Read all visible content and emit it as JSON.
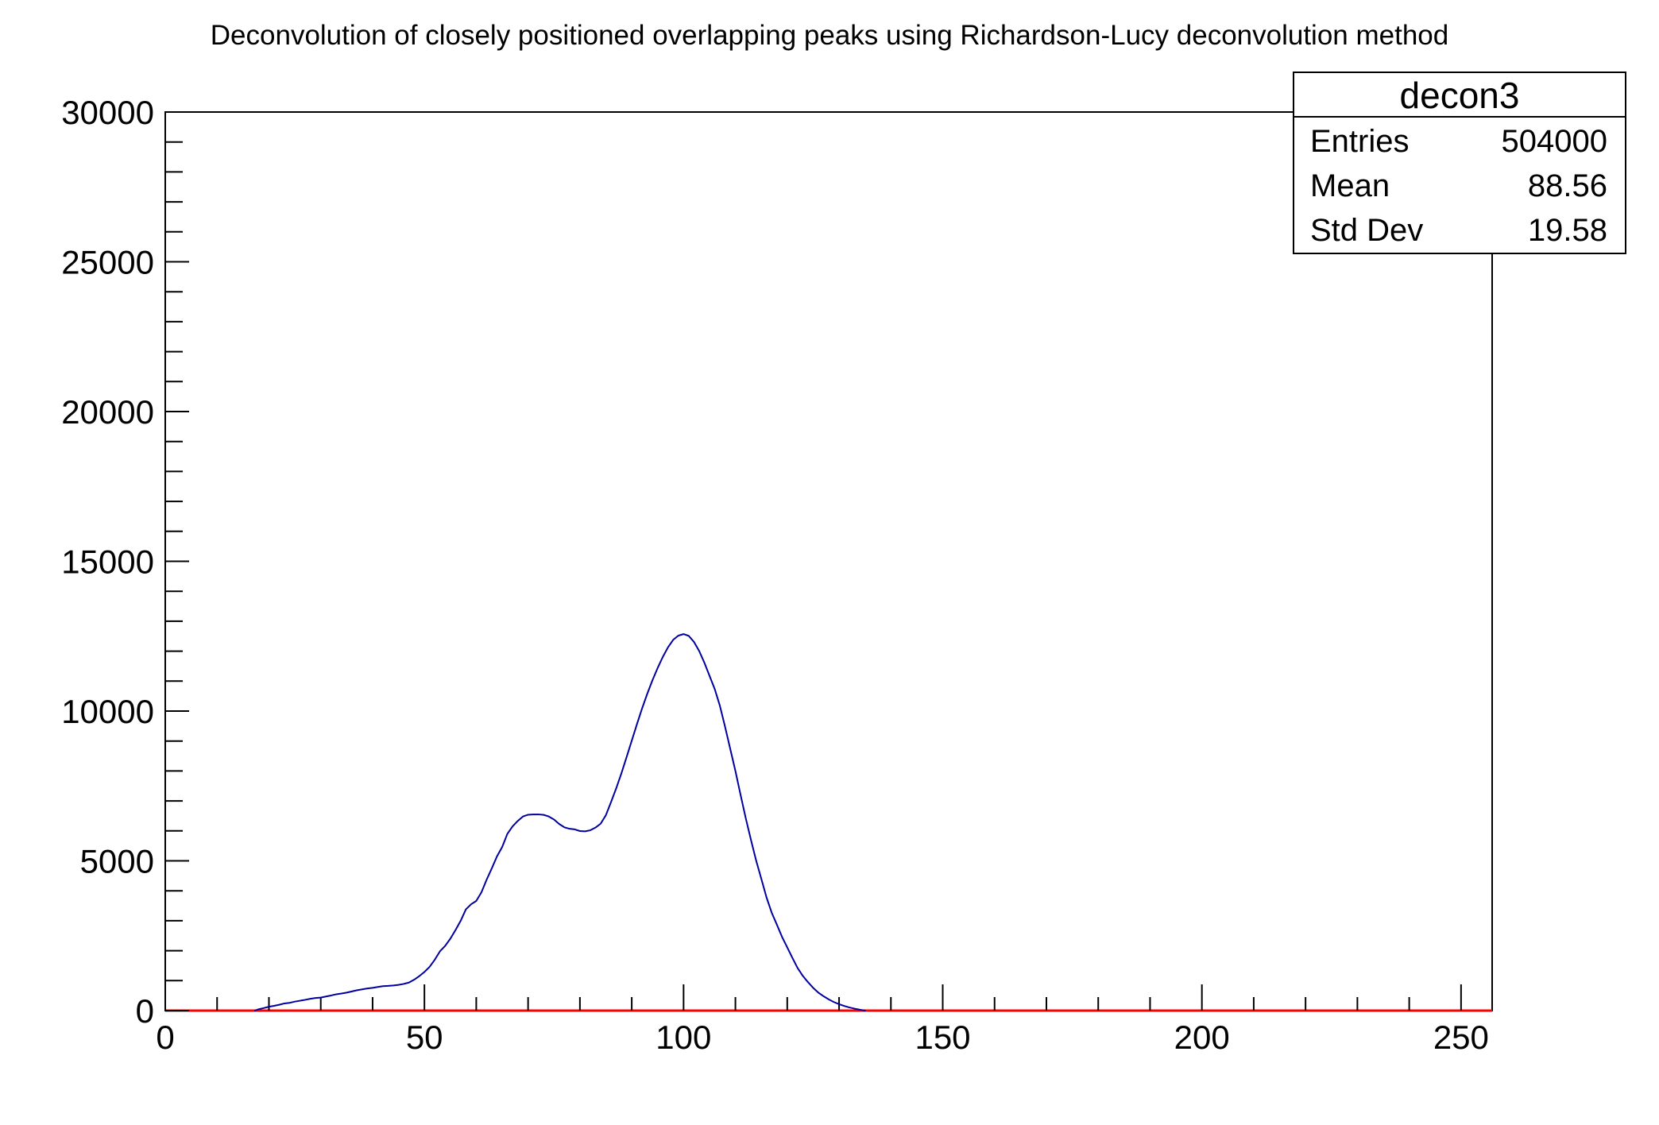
{
  "title": "Deconvolution of closely positioned overlapping peaks using Richardson-Lucy deconvolution method",
  "stats_box": {
    "title": "decon3",
    "rows": [
      {
        "label": "Entries",
        "value": "504000"
      },
      {
        "label": "Mean",
        "value": "88.56"
      },
      {
        "label": "Std Dev",
        "value": "19.58"
      }
    ]
  },
  "colors": {
    "curve_blue": "#0000a0",
    "baseline_red": "#ff0000",
    "frame_black": "#000000",
    "background": "#ffffff"
  },
  "chart_data": {
    "type": "line",
    "title": "Deconvolution of closely positioned overlapping peaks using Richardson-Lucy deconvolution method",
    "xlabel": "",
    "ylabel": "",
    "grid": false,
    "legend": "none",
    "x_axis": {
      "min": 0,
      "max": 256,
      "major_ticks": [
        0,
        50,
        100,
        150,
        200,
        250
      ],
      "minor_tick_step": 10
    },
    "y_axis": {
      "min": 0,
      "max": 30000,
      "major_ticks": [
        0,
        5000,
        10000,
        15000,
        20000,
        25000,
        30000
      ],
      "minor_tick_step": 1000
    },
    "series": [
      {
        "name": "decon3",
        "color": "#0000a0",
        "width": 2,
        "points": [
          [
            17.3,
            0
          ],
          [
            18,
            45
          ],
          [
            19,
            85
          ],
          [
            20,
            130
          ],
          [
            21,
            160
          ],
          [
            22,
            195
          ],
          [
            23,
            240
          ],
          [
            24,
            260
          ],
          [
            25,
            300
          ],
          [
            26,
            330
          ],
          [
            27,
            360
          ],
          [
            28,
            395
          ],
          [
            29,
            420
          ],
          [
            30,
            435
          ],
          [
            31,
            470
          ],
          [
            32,
            505
          ],
          [
            33,
            545
          ],
          [
            34,
            570
          ],
          [
            35,
            600
          ],
          [
            36,
            640
          ],
          [
            37,
            680
          ],
          [
            38,
            710
          ],
          [
            39,
            740
          ],
          [
            40,
            760
          ],
          [
            41,
            790
          ],
          [
            42,
            815
          ],
          [
            43,
            825
          ],
          [
            44,
            840
          ],
          [
            45,
            860
          ],
          [
            46,
            890
          ],
          [
            47,
            935
          ],
          [
            48,
            1030
          ],
          [
            49,
            1150
          ],
          [
            50,
            1290
          ],
          [
            51,
            1460
          ],
          [
            52,
            1700
          ],
          [
            53,
            1980
          ],
          [
            54,
            2160
          ],
          [
            55,
            2400
          ],
          [
            56,
            2690
          ],
          [
            57,
            3000
          ],
          [
            58,
            3380
          ],
          [
            59,
            3550
          ],
          [
            60,
            3660
          ],
          [
            61,
            3950
          ],
          [
            62,
            4370
          ],
          [
            63,
            4750
          ],
          [
            64,
            5150
          ],
          [
            65,
            5460
          ],
          [
            66,
            5900
          ],
          [
            67,
            6150
          ],
          [
            68,
            6330
          ],
          [
            69,
            6480
          ],
          [
            70,
            6540
          ],
          [
            71,
            6550
          ],
          [
            72,
            6550
          ],
          [
            73,
            6535
          ],
          [
            74,
            6480
          ],
          [
            75,
            6380
          ],
          [
            76,
            6230
          ],
          [
            77,
            6120
          ],
          [
            78,
            6070
          ],
          [
            79,
            6050
          ],
          [
            80,
            5995
          ],
          [
            81,
            5985
          ],
          [
            82,
            6020
          ],
          [
            83,
            6110
          ],
          [
            84,
            6240
          ],
          [
            85,
            6520
          ],
          [
            86,
            6960
          ],
          [
            87,
            7420
          ],
          [
            88,
            7920
          ],
          [
            89,
            8460
          ],
          [
            90,
            9010
          ],
          [
            91,
            9560
          ],
          [
            92,
            10090
          ],
          [
            93,
            10580
          ],
          [
            94,
            11030
          ],
          [
            95,
            11440
          ],
          [
            96,
            11810
          ],
          [
            97,
            12130
          ],
          [
            98,
            12380
          ],
          [
            99,
            12520
          ],
          [
            100,
            12570
          ],
          [
            101,
            12510
          ],
          [
            102,
            12310
          ],
          [
            103,
            12010
          ],
          [
            104,
            11620
          ],
          [
            105,
            11180
          ],
          [
            106,
            10740
          ],
          [
            107,
            10180
          ],
          [
            108,
            9480
          ],
          [
            109,
            8740
          ],
          [
            110,
            8000
          ],
          [
            111,
            7200
          ],
          [
            112,
            6420
          ],
          [
            113,
            5700
          ],
          [
            114,
            5010
          ],
          [
            115,
            4400
          ],
          [
            116,
            3780
          ],
          [
            117,
            3270
          ],
          [
            118,
            2870
          ],
          [
            119,
            2460
          ],
          [
            120,
            2110
          ],
          [
            121,
            1760
          ],
          [
            122,
            1420
          ],
          [
            123,
            1160
          ],
          [
            124,
            950
          ],
          [
            125,
            760
          ],
          [
            126,
            600
          ],
          [
            127,
            480
          ],
          [
            128,
            375
          ],
          [
            129,
            285
          ],
          [
            130,
            215
          ],
          [
            131,
            155
          ],
          [
            132,
            105
          ],
          [
            133,
            65
          ],
          [
            134,
            30
          ],
          [
            135,
            0
          ]
        ]
      },
      {
        "name": "zero-baseline",
        "color": "#ff0000",
        "width": 3,
        "points": [
          [
            0,
            0
          ],
          [
            256,
            0
          ]
        ]
      }
    ]
  }
}
